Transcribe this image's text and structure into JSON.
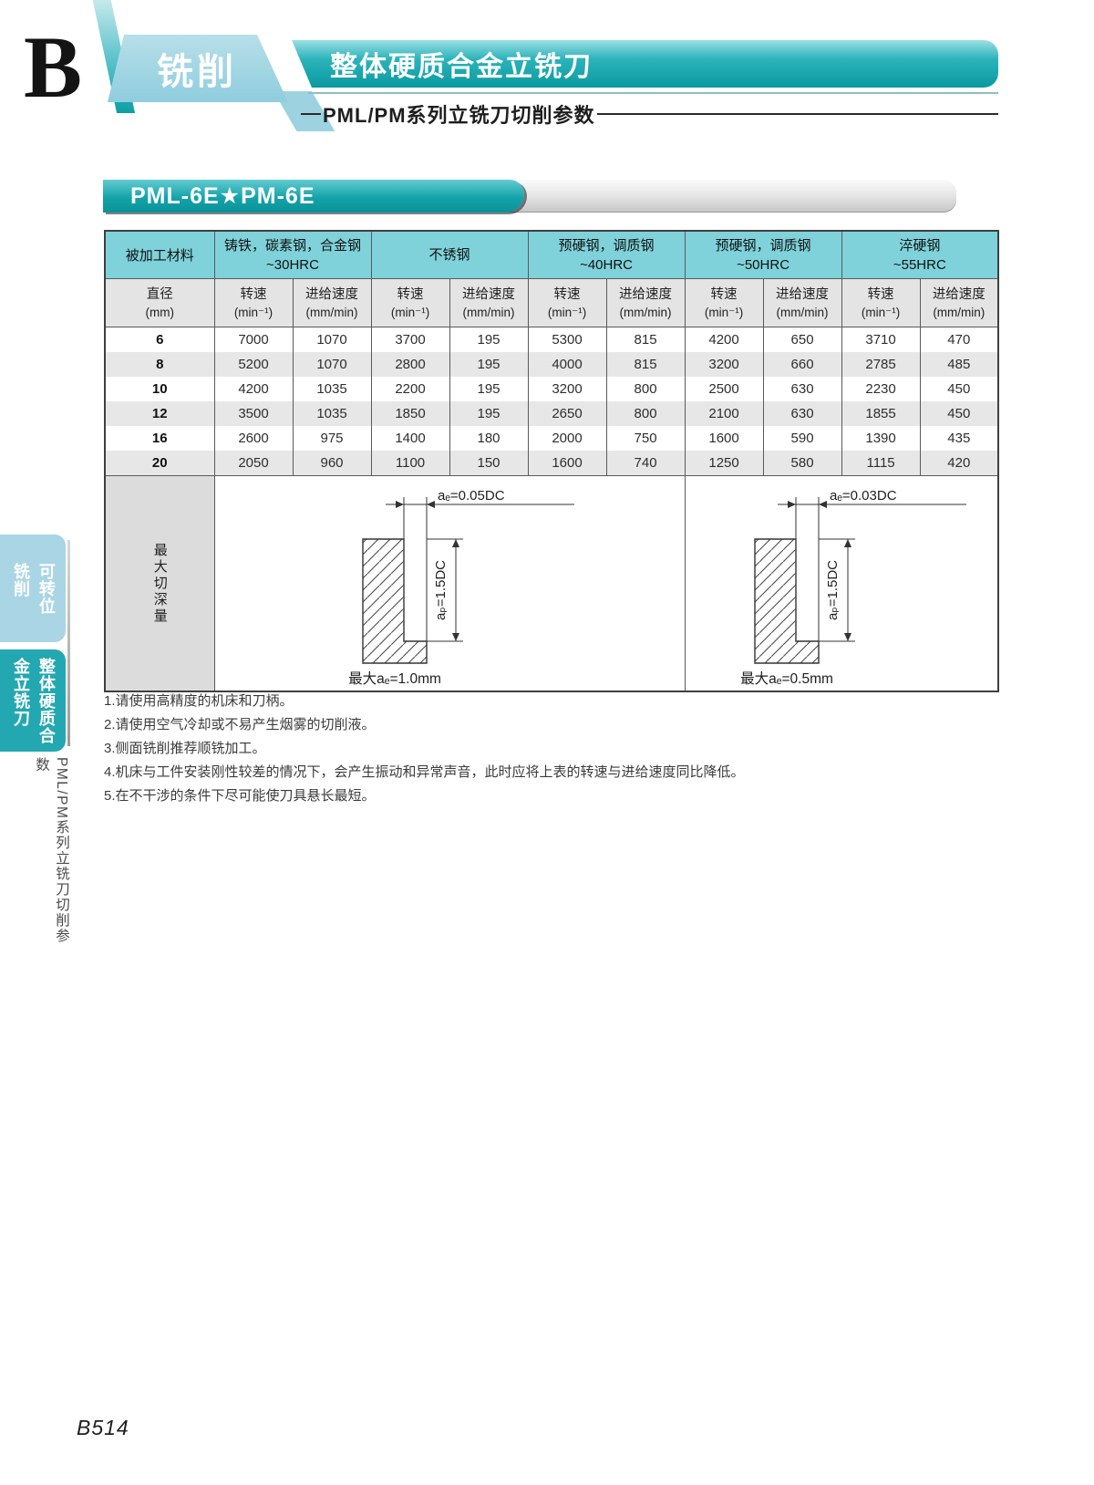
{
  "page": {
    "section_letter": "B",
    "category_tab": "铣削",
    "title": "整体硬质合金立铣刀",
    "subtitle": "PML/PM系列立铣刀切削参数",
    "product_header": "PML-6E★PM-6E",
    "page_number": "B514"
  },
  "sidebar": {
    "tab1_label": "可转位\n铣削",
    "tab2_label": "整体硬质合\n金立铣刀",
    "vertical_caption": "PML/PM系列立铣刀切削参数"
  },
  "table": {
    "corner_header": "被加工材料",
    "material_groups": [
      {
        "name": "铸铁，碳素钢，合金钢",
        "hardness": "~30HRC"
      },
      {
        "name": "不锈钢",
        "hardness": ""
      },
      {
        "name": "预硬钢，调质钢",
        "hardness": "~40HRC"
      },
      {
        "name": "预硬钢，调质钢",
        "hardness": "~50HRC"
      },
      {
        "name": "淬硬钢",
        "hardness": "~55HRC"
      }
    ],
    "diameter_header": {
      "label": "直径",
      "unit": "(mm)"
    },
    "speed_header": {
      "label": "转速",
      "unit": "(min⁻¹)"
    },
    "feed_header": {
      "label": "进给速度",
      "unit": "(mm/min)"
    },
    "rows": [
      {
        "d": "6",
        "v": [
          "7000",
          "1070",
          "3700",
          "195",
          "5300",
          "815",
          "4200",
          "650",
          "3710",
          "470"
        ]
      },
      {
        "d": "8",
        "v": [
          "5200",
          "1070",
          "2800",
          "195",
          "4000",
          "815",
          "3200",
          "660",
          "2785",
          "485"
        ]
      },
      {
        "d": "10",
        "v": [
          "4200",
          "1035",
          "2200",
          "195",
          "3200",
          "800",
          "2500",
          "630",
          "2230",
          "450"
        ]
      },
      {
        "d": "12",
        "v": [
          "3500",
          "1035",
          "1850",
          "195",
          "2650",
          "800",
          "2100",
          "630",
          "1855",
          "450"
        ]
      },
      {
        "d": "16",
        "v": [
          "2600",
          "975",
          "1400",
          "180",
          "2000",
          "750",
          "1600",
          "590",
          "1390",
          "435"
        ]
      },
      {
        "d": "20",
        "v": [
          "2050",
          "960",
          "1100",
          "150",
          "1600",
          "740",
          "1250",
          "580",
          "1115",
          "420"
        ]
      }
    ],
    "depth_row_label": "最大切深量",
    "diagrams": [
      {
        "ae_label": "aₑ=0.05DC",
        "ap_label": "aₚ=1.5DC",
        "caption": "最大aₑ=1.0mm"
      },
      {
        "ae_label": "aₑ=0.03DC",
        "ap_label": "aₚ=1.5DC",
        "caption": "最大aₑ=0.5mm"
      }
    ]
  },
  "notes": [
    "1.请使用高精度的机床和刀柄。",
    "2.请使用空气冷却或不易产生烟雾的切削液。",
    "3.侧面铣削推荐顺铣加工。",
    "4.机床与工件安装刚性较差的情况下，会产生振动和异常声音，此时应将上表的转速与进给速度同比降低。",
    "5.在不干涉的条件下尽可能使刀具悬长最短。"
  ],
  "colors": {
    "teal_dark": "#0a9aa0",
    "teal_header_cell": "#7fd2da",
    "light_blue_tab": "#a9d5e4",
    "sidebar_teal_tab": "#23a8b2",
    "gray_header_cell": "#e4e4e4",
    "row_stripe": "#e7e7e7",
    "depth_label_bg": "#dcdcdc"
  }
}
